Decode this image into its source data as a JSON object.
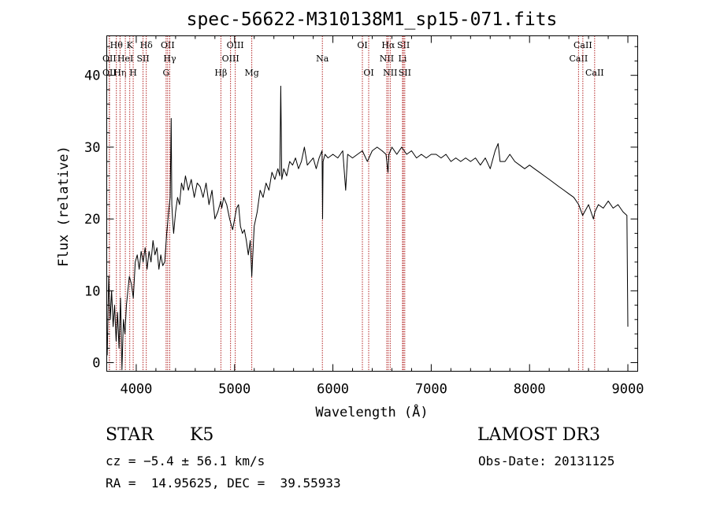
{
  "chart_data": {
    "type": "line",
    "title": "spec-56622-M310138M1_sp15-071.fits",
    "xlabel": "Wavelength (Å)",
    "ylabel": "Flux (relative)",
    "xlim": [
      3700,
      9100
    ],
    "ylim": [
      -1.2,
      45.5
    ],
    "xticks": [
      4000,
      5000,
      6000,
      7000,
      8000,
      9000
    ],
    "yticks": [
      0,
      10,
      20,
      30,
      40
    ],
    "series": [
      {
        "name": "spectrum",
        "x": [
          3705,
          3720,
          3735,
          3750,
          3765,
          3780,
          3795,
          3810,
          3825,
          3840,
          3855,
          3870,
          3885,
          3900,
          3915,
          3930,
          3950,
          3970,
          3990,
          4010,
          4030,
          4050,
          4070,
          4090,
          4110,
          4130,
          4150,
          4170,
          4190,
          4210,
          4230,
          4250,
          4270,
          4290,
          4310,
          4330,
          4345,
          4355,
          4362,
          4370,
          4380,
          4400,
          4420,
          4440,
          4460,
          4480,
          4500,
          4530,
          4560,
          4590,
          4620,
          4650,
          4680,
          4710,
          4740,
          4770,
          4800,
          4830,
          4860,
          4870,
          4890,
          4920,
          4950,
          4980,
          5000,
          5020,
          5040,
          5060,
          5080,
          5100,
          5120,
          5140,
          5160,
          5175,
          5185,
          5200,
          5230,
          5260,
          5290,
          5320,
          5350,
          5380,
          5410,
          5440,
          5460,
          5470,
          5480,
          5500,
          5530,
          5560,
          5590,
          5620,
          5650,
          5680,
          5710,
          5740,
          5770,
          5800,
          5830,
          5860,
          5890,
          5895,
          5900,
          5920,
          5950,
          6000,
          6050,
          6100,
          6130,
          6150,
          6200,
          6250,
          6300,
          6350,
          6400,
          6450,
          6500,
          6540,
          6560,
          6570,
          6600,
          6650,
          6700,
          6750,
          6800,
          6850,
          6900,
          6950,
          7000,
          7050,
          7100,
          7150,
          7200,
          7250,
          7300,
          7350,
          7400,
          7450,
          7500,
          7550,
          7600,
          7650,
          7680,
          7700,
          7750,
          7800,
          7850,
          7900,
          7950,
          8000,
          8050,
          8100,
          8150,
          8200,
          8250,
          8300,
          8350,
          8400,
          8450,
          8500,
          8540,
          8560,
          8600,
          8650,
          8665,
          8700,
          8750,
          8800,
          8850,
          8900,
          8950,
          8990,
          9000
        ],
        "values": [
          1.0,
          12.0,
          6.0,
          10.0,
          5.0,
          8.0,
          3.0,
          7.0,
          2.0,
          9.0,
          -1.0,
          6.0,
          4.0,
          8.0,
          10.0,
          12.0,
          11.0,
          9.0,
          14.0,
          15.0,
          13.0,
          15.5,
          14.0,
          16.0,
          13.0,
          15.5,
          14.0,
          17.0,
          15.0,
          16.0,
          13.0,
          15.0,
          13.5,
          14.0,
          18.0,
          21.0,
          23.0,
          34.0,
          22.0,
          20.0,
          18.0,
          21.0,
          23.0,
          22.0,
          25.0,
          24.0,
          26.0,
          24.0,
          25.5,
          23.0,
          25.0,
          24.5,
          23.0,
          25.0,
          22.0,
          24.0,
          20.0,
          21.0,
          22.5,
          21.5,
          23.0,
          22.0,
          20.0,
          18.5,
          20.0,
          21.5,
          22.0,
          19.0,
          18.0,
          18.5,
          17.0,
          15.0,
          17.0,
          12.0,
          15.0,
          19.0,
          21.0,
          24.0,
          23.0,
          25.0,
          24.0,
          26.5,
          25.5,
          27.0,
          26.0,
          38.5,
          25.5,
          27.0,
          26.0,
          28.0,
          27.5,
          28.5,
          27.0,
          28.0,
          30.0,
          27.5,
          28.0,
          28.5,
          27.0,
          28.5,
          29.5,
          20.0,
          28.0,
          29.0,
          28.5,
          29.0,
          28.5,
          29.5,
          24.0,
          29.0,
          28.5,
          29.0,
          29.5,
          28.0,
          29.5,
          30.0,
          29.5,
          29.0,
          26.5,
          29.0,
          30.0,
          29.0,
          30.0,
          29.0,
          29.5,
          28.5,
          29.0,
          28.5,
          29.0,
          29.0,
          28.5,
          29.0,
          28.0,
          28.5,
          28.0,
          28.5,
          28.0,
          28.5,
          27.5,
          28.5,
          27.0,
          29.5,
          30.5,
          28.0,
          28.0,
          29.0,
          28.0,
          27.5,
          27.0,
          27.5,
          27.0,
          26.5,
          26.0,
          25.5,
          25.0,
          24.5,
          24.0,
          23.5,
          23.0,
          22.0,
          20.5,
          21.0,
          22.0,
          20.0,
          21.0,
          22.0,
          21.5,
          22.5,
          21.5,
          22.0,
          21.0,
          20.5,
          5.0
        ]
      }
    ],
    "lines": [
      {
        "name": "Hθ",
        "x": 3798,
        "label_pos": "top"
      },
      {
        "name": "OII",
        "x": 3727,
        "label_pos": "upper-mid"
      },
      {
        "name": "OII",
        "x": 3727,
        "label_pos": "lower"
      },
      {
        "name": "Hη",
        "x": 3835,
        "label_pos": "lower"
      },
      {
        "name": "HeI",
        "x": 3889,
        "label_pos": "upper-mid"
      },
      {
        "name": "K",
        "x": 3934,
        "label_pos": "top"
      },
      {
        "name": "H",
        "x": 3969,
        "label_pos": "lower"
      },
      {
        "name": "SII",
        "x": 4069,
        "label_pos": "upper-mid"
      },
      {
        "name": "Hδ",
        "x": 4102,
        "label_pos": "top"
      },
      {
        "name": "G",
        "x": 4304,
        "label_pos": "lower"
      },
      {
        "name": "OII",
        "x": 4320,
        "label_pos": "top"
      },
      {
        "name": "Hγ",
        "x": 4341,
        "label_pos": "upper-mid"
      },
      {
        "name": "Hβ",
        "x": 4861,
        "label_pos": "lower"
      },
      {
        "name": "OIII",
        "x": 4959,
        "label_pos": "upper-mid"
      },
      {
        "name": "OIII",
        "x": 5007,
        "label_pos": "top"
      },
      {
        "name": "Mg",
        "x": 5175,
        "label_pos": "lower"
      },
      {
        "name": "Na",
        "x": 5893,
        "label_pos": "upper-mid"
      },
      {
        "name": "OI",
        "x": 6300,
        "label_pos": "top"
      },
      {
        "name": "OI",
        "x": 6364,
        "label_pos": "lower"
      },
      {
        "name": "NII",
        "x": 6548,
        "label_pos": "upper-mid"
      },
      {
        "name": "Hα",
        "x": 6563,
        "label_pos": "top"
      },
      {
        "name": "NII",
        "x": 6583,
        "label_pos": "lower"
      },
      {
        "name": "SII",
        "x": 6717,
        "label_pos": "top"
      },
      {
        "name": "Li",
        "x": 6708,
        "label_pos": "upper-mid"
      },
      {
        "name": "SII",
        "x": 6731,
        "label_pos": "lower"
      },
      {
        "name": "CaII",
        "x": 8498,
        "label_pos": "upper-mid"
      },
      {
        "name": "CaII",
        "x": 8542,
        "label_pos": "top"
      },
      {
        "name": "CaII",
        "x": 8662,
        "label_pos": "lower"
      }
    ],
    "line_color": "#b22222",
    "grid": false
  },
  "info": {
    "class_label": "STAR",
    "subclass": "K5",
    "survey": "LAMOST DR3",
    "cz": "cz = −5.4 ± 56.1 km/s",
    "obs_date": "Obs-Date: 20131125",
    "coords": "RA =  14.95625, DEC =  39.55933"
  }
}
